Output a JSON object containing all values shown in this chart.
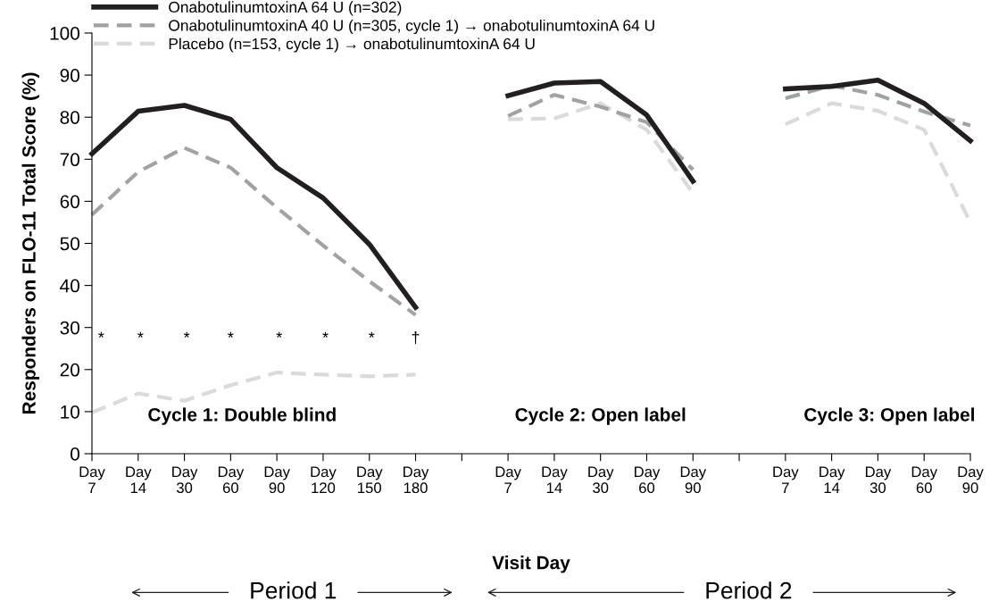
{
  "chart_data": {
    "type": "line",
    "ylabel": "Responders on FLO-11 Total Score (%)",
    "xlabel": "Visit Day",
    "categories": [
      "Day\n7",
      "Day\n14",
      "Day\n30",
      "Day\n60",
      "Day\n90",
      "Day\n120",
      "Day\n150",
      "Day\n180",
      null,
      "Day\n7",
      "Day\n14",
      "Day\n30",
      "Day\n60",
      "Day\n90",
      null,
      "Day\n7",
      "Day\n14",
      "Day\n30",
      "Day\n60",
      "Day\n90"
    ],
    "series": [
      {
        "name": "OnabotulinumtoxinA 64 U (n=302)",
        "color": "#231f20",
        "line_style": "solid",
        "values": [
          71.3,
          81.4,
          82.8,
          79.5,
          68,
          60.8,
          49.8,
          34.8,
          null,
          85.1,
          88.1,
          88.5,
          80.5,
          64.8,
          null,
          86.7,
          87.3,
          88.8,
          83.3,
          74.4
        ]
      },
      {
        "name": "OnabotulinumtoxinA 40 U (n=305, cycle 1) → onabotulinumtoxinA 64 U",
        "color": "#a0a3a6",
        "line_style": "dashed",
        "values": [
          56.8,
          67,
          72.7,
          68,
          58.5,
          49.5,
          41,
          33,
          null,
          80.3,
          85.3,
          82.5,
          78.8,
          67.5,
          null,
          84.5,
          87.5,
          85.3,
          81.3,
          78
        ]
      },
      {
        "name": "Placebo (n=153, cycle 1) → onabotulinumtoxinA 64 U",
        "color": "#d9dadb",
        "line_style": "dashed",
        "values": [
          9.8,
          14.3,
          12.6,
          16.3,
          19.3,
          18.8,
          18.4,
          18.8,
          null,
          79.5,
          79.7,
          83.3,
          77,
          62,
          null,
          78.3,
          83.3,
          81.5,
          77,
          55
        ]
      }
    ],
    "ylim": [
      0,
      100
    ],
    "yticks": [
      0,
      10,
      20,
      30,
      40,
      50,
      60,
      70,
      80,
      90,
      100
    ],
    "grid": false,
    "legend": "top left",
    "marker": "none",
    "annotations": [
      "*",
      "*",
      "*",
      "*",
      "*",
      "*",
      "*",
      "†",
      "Cycle 1: Double blind",
      "Cycle 2: Open label",
      "Cycle 3: Open label",
      "Period 1",
      "Period 2"
    ]
  }
}
